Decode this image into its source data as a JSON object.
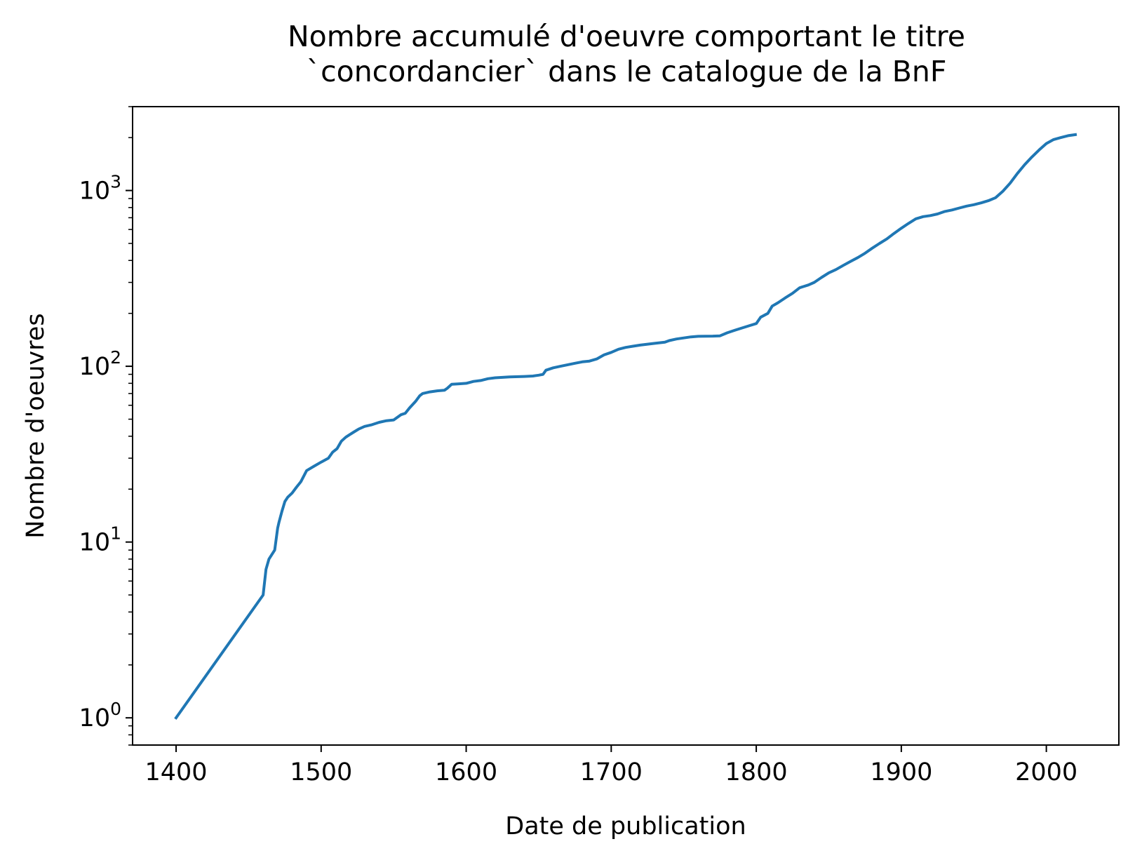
{
  "chart_data": {
    "type": "line",
    "title": "Nombre accumulé d'oeuvre comportant le titre `concordancier` dans le catalogue de la BnF",
    "title_lines": [
      "Nombre accumulé d'oeuvre comportant le titre",
      "`concordancier` dans le catalogue de la BnF"
    ],
    "xlabel": "Date de publication",
    "ylabel": "Nombre d'oeuvres",
    "xlim": [
      1370,
      2050
    ],
    "ylim": [
      0.7,
      3000
    ],
    "yscale": "log",
    "grid": false,
    "legend": "none",
    "line_color": "#1f77b4",
    "x_ticks": [
      1400,
      1500,
      1600,
      1700,
      1800,
      1900,
      2000
    ],
    "y_ticks": [
      {
        "value": 1,
        "base": "10",
        "exp": "0"
      },
      {
        "value": 10,
        "base": "10",
        "exp": "1"
      },
      {
        "value": 100,
        "base": "10",
        "exp": "2"
      },
      {
        "value": 1000,
        "base": "10",
        "exp": "3"
      }
    ],
    "series": [
      {
        "x": [
          1400,
          1460,
          1462,
          1464,
          1468,
          1470,
          1471,
          1473,
          1475,
          1477,
          1480,
          1483,
          1486,
          1490,
          1495,
          1500,
          1505,
          1508,
          1511,
          1514,
          1517,
          1519,
          1522,
          1526,
          1530,
          1535,
          1540,
          1545,
          1550,
          1555,
          1558,
          1561,
          1565,
          1568,
          1570,
          1575,
          1580,
          1585,
          1587,
          1590,
          1595,
          1600,
          1605,
          1610,
          1615,
          1620,
          1625,
          1630,
          1640,
          1646,
          1650,
          1653,
          1655,
          1660,
          1665,
          1670,
          1675,
          1680,
          1685,
          1690,
          1695,
          1700,
          1705,
          1710,
          1715,
          1720,
          1730,
          1737,
          1740,
          1745,
          1750,
          1755,
          1760,
          1770,
          1775,
          1780,
          1785,
          1790,
          1795,
          1800,
          1803,
          1808,
          1811,
          1815,
          1820,
          1825,
          1830,
          1836,
          1840,
          1845,
          1850,
          1855,
          1860,
          1865,
          1870,
          1875,
          1880,
          1885,
          1890,
          1895,
          1900,
          1905,
          1910,
          1915,
          1920,
          1925,
          1930,
          1935,
          1940,
          1945,
          1950,
          1955,
          1960,
          1965,
          1970,
          1975,
          1980,
          1985,
          1990,
          1995,
          2000,
          2005,
          2010,
          2015,
          2020
        ],
        "y": [
          1,
          5,
          7,
          8,
          9,
          12,
          13,
          15,
          17,
          18,
          19,
          20.5,
          22,
          25.5,
          27,
          28.5,
          30,
          32.5,
          34,
          37.5,
          39.5,
          40.5,
          42,
          44,
          45.5,
          46.5,
          48,
          49,
          49.5,
          53,
          54,
          58,
          63,
          68,
          70,
          71.5,
          72.5,
          73,
          75,
          79,
          79.5,
          80,
          82,
          83,
          85,
          86,
          86.5,
          87,
          87.5,
          88,
          89,
          90,
          95,
          98,
          100,
          102,
          104,
          106,
          107,
          110,
          116,
          120,
          125,
          128,
          130,
          132,
          135,
          137,
          140,
          143,
          145,
          147,
          148,
          148.5,
          149,
          155,
          160,
          165,
          170,
          175,
          190,
          200,
          220,
          230,
          245,
          260,
          280,
          290,
          300,
          320,
          340,
          355,
          375,
          395,
          415,
          440,
          470,
          500,
          530,
          570,
          610,
          650,
          690,
          710,
          720,
          735,
          760,
          775,
          795,
          815,
          830,
          850,
          875,
          910,
          990,
          1100,
          1250,
          1400,
          1550,
          1700,
          1850,
          1950,
          2000,
          2050,
          2080
        ]
      }
    ]
  }
}
